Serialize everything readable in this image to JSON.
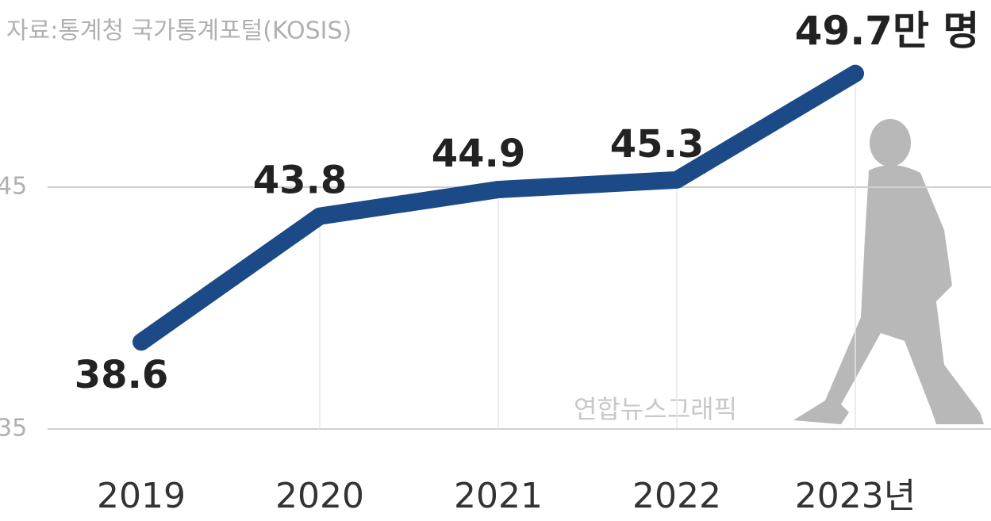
{
  "chart_data": {
    "type": "line",
    "source": "자료:통계청 국가통계포털(KOSIS)",
    "credit": "연합뉴스그래픽",
    "categories": [
      "2019",
      "2020",
      "2021",
      "2022",
      "2023년"
    ],
    "series": [
      {
        "name": "",
        "color": "#1b4a86",
        "values": [
          38.6,
          43.8,
          44.9,
          45.3,
          49.7
        ],
        "value_labels": [
          "38.6",
          "43.8",
          "44.9",
          "45.3",
          "49.7만 명"
        ]
      }
    ],
    "ylim": [
      35,
      50
    ],
    "yticks": [
      35,
      45
    ],
    "grid": true
  }
}
